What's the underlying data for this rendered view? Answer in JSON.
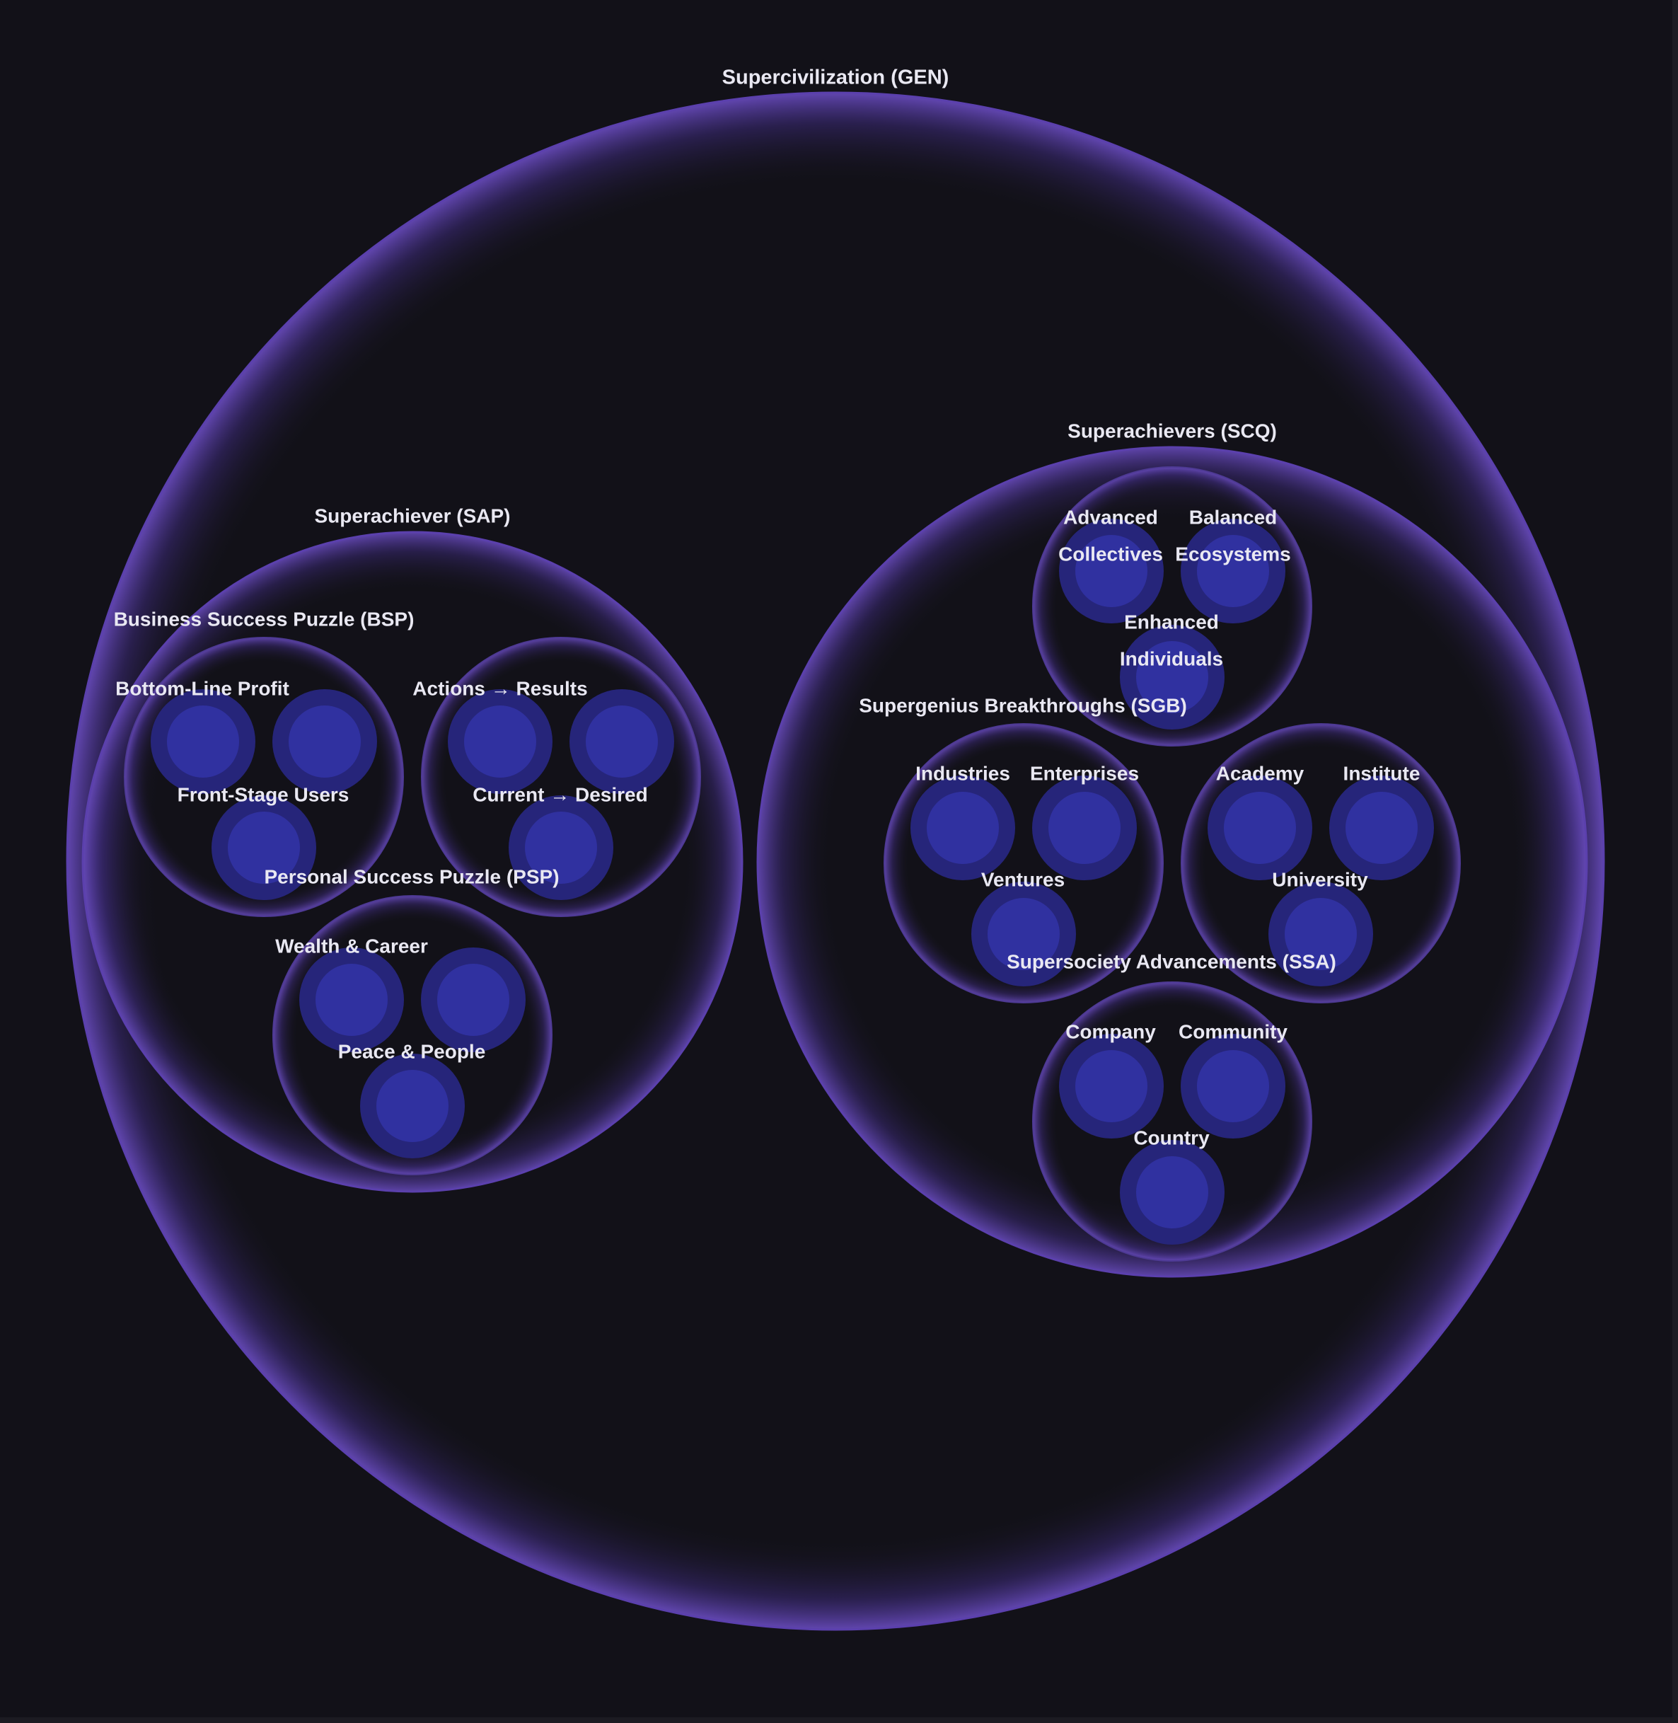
{
  "colors": {
    "background": "#121118",
    "ring": "#5a3fa8",
    "leaf_fill": "#2b2a8a",
    "leaf_core": "#33339a",
    "text": "#e9e8f2"
  },
  "root": {
    "label": "Supercivilization (GEN)",
    "children": [
      {
        "label": "Superachiever (SAP)",
        "children": [
          {
            "label": "Business Success Puzzle (BSP)",
            "children": [
              {
                "label": "Bottom-Line Profit",
                "leaves": [
                  "",
                  "",
                  ""
                ],
                "leaf_labels": [
                  "",
                  "",
                  "Front-Stage Users"
                ]
              },
              {
                "label": "Actions → Results",
                "leaves": [
                  "",
                  "",
                  ""
                ],
                "leaf_labels": [
                  "",
                  "",
                  "Current → Desired"
                ]
              }
            ]
          },
          {
            "label": "Personal Success Puzzle (PSP)",
            "leaf_labels": [
              "Wealth & Career",
              "",
              "Peace & People"
            ]
          }
        ]
      },
      {
        "label": "Superachievers (SCQ)",
        "children": [
          {
            "label": "",
            "leaf_labels": [
              "Advanced Collectives",
              "Balanced Ecosystems",
              "Enhanced Individuals"
            ]
          },
          {
            "label": "Supergenius Breakthroughs (SGB)",
            "groups": [
              {
                "leaf_labels": [
                  "Industries",
                  "Enterprises",
                  "Ventures"
                ]
              },
              {
                "leaf_labels": [
                  "Academy",
                  "Institute",
                  "University"
                ]
              }
            ]
          },
          {
            "label": "Supersociety Advancements (SSA)",
            "leaf_labels": [
              "Company",
              "Community",
              "Country"
            ]
          }
        ]
      }
    ]
  }
}
